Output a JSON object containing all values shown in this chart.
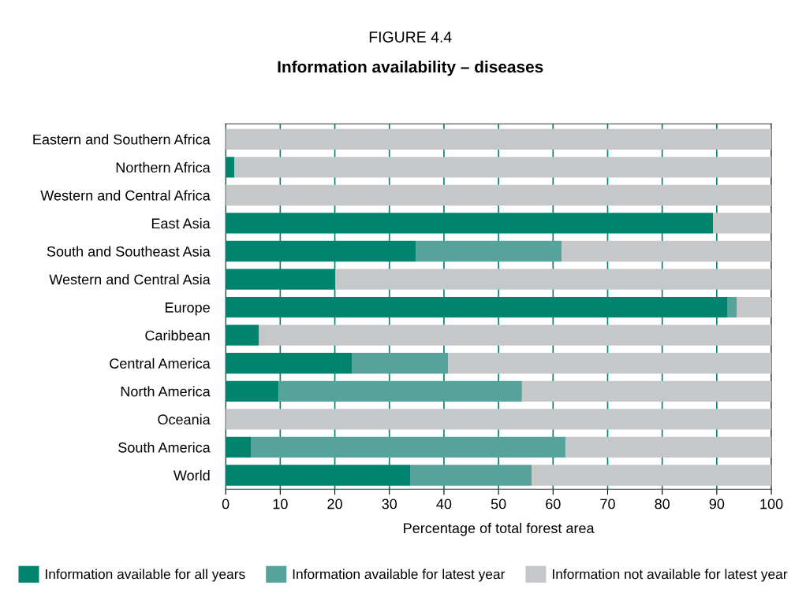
{
  "chart_data": {
    "type": "bar",
    "orientation": "horizontal",
    "stacked": true,
    "title": "Information availability – diseases",
    "subtitle": "FIGURE 4.4",
    "xlabel": "Percentage of total forest area",
    "categories": [
      "Eastern and Southern Africa",
      "Northern Africa",
      "Western and Central Africa",
      "East Asia",
      "South and Southeast Asia",
      "Western and Central Asia",
      "Europe",
      "Caribbean",
      "Central America",
      "North America",
      "Oceania",
      "South America",
      "World"
    ],
    "series": [
      {
        "name": "Information available for all years",
        "color": "#00836f",
        "values": [
          null,
          1.6,
          null,
          89.3,
          34.9,
          20.1,
          91.9,
          6.1,
          23.2,
          9.7,
          null,
          4.6,
          33.8
        ]
      },
      {
        "name": "Information available for latest year",
        "color": "#55a39a",
        "values": [
          0,
          0,
          0,
          0,
          26.7,
          0,
          1.8,
          0,
          17.6,
          44.6,
          0,
          57.7,
          22.3
        ]
      },
      {
        "name": "Information not available for latest year",
        "color": "#c6c7c8",
        "values": [
          100,
          98.4,
          100,
          10.7,
          38.4,
          79.9,
          6.3,
          93.9,
          59.2,
          45.7,
          100,
          37.7,
          43.9
        ]
      }
    ],
    "xlim": [
      0,
      100
    ],
    "xticks": [
      0,
      10,
      20,
      30,
      40,
      50,
      60,
      70,
      80,
      90,
      100
    ],
    "grid": "x",
    "legend": "bottom"
  }
}
